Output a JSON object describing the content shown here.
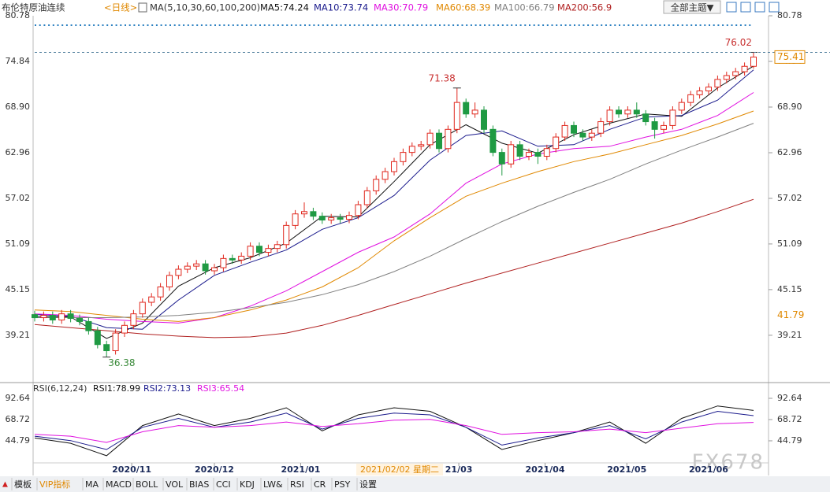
{
  "header": {
    "symbol": "布伦特原油连续",
    "period": "<日线>",
    "ma_label": "MA(5,10,30,60,100,200)",
    "theme_button": "全部主题▼"
  },
  "chart_data": [
    {
      "type": "candlestick",
      "ylim": [
        33.67,
        80.78
      ],
      "yticks": [
        80.78,
        74.84,
        {
          "value": 68.9,
          "label": "68.90"
        },
        62.96,
        57.02,
        51.09,
        45.15,
        39.21
      ],
      "up_color": "#e0281e",
      "down_color": "#1f9a43",
      "ohlc": [
        [
          41.9,
          42.4,
          41.0,
          41.5
        ],
        [
          41.5,
          42.3,
          41.0,
          41.8
        ],
        [
          41.8,
          42.3,
          40.7,
          41.2
        ],
        [
          41.2,
          42.5,
          40.7,
          42.0
        ],
        [
          42.0,
          42.5,
          40.9,
          41.4
        ],
        [
          41.4,
          41.9,
          40.5,
          41.0
        ],
        [
          41.0,
          41.5,
          39.3,
          39.8
        ],
        [
          39.8,
          40.3,
          37.5,
          38.0
        ],
        [
          38.0,
          38.5,
          36.38,
          37.2
        ],
        [
          37.2,
          40.0,
          36.7,
          39.5
        ],
        [
          39.5,
          41.0,
          39.0,
          40.5
        ],
        [
          40.5,
          42.5,
          40.0,
          42.0
        ],
        [
          42.0,
          44.0,
          41.5,
          43.5
        ],
        [
          43.5,
          44.7,
          43.0,
          44.2
        ],
        [
          44.2,
          46.0,
          43.7,
          45.5
        ],
        [
          45.5,
          47.5,
          45.0,
          47.0
        ],
        [
          47.0,
          48.3,
          46.5,
          47.8
        ],
        [
          47.8,
          48.7,
          47.3,
          48.2
        ],
        [
          48.2,
          49.0,
          47.7,
          48.5
        ],
        [
          48.5,
          49.0,
          47.1,
          47.6
        ],
        [
          47.6,
          48.5,
          47.1,
          48.0
        ],
        [
          48.0,
          49.7,
          47.5,
          49.2
        ],
        [
          49.2,
          49.7,
          48.5,
          49.0
        ],
        [
          49.0,
          50.0,
          48.5,
          49.5
        ],
        [
          49.5,
          51.3,
          49.0,
          50.8
        ],
        [
          50.8,
          51.3,
          49.5,
          50.0
        ],
        [
          50.0,
          51.0,
          49.5,
          50.5
        ],
        [
          50.5,
          51.5,
          50.0,
          51.0
        ],
        [
          51.0,
          54.0,
          50.5,
          53.5
        ],
        [
          53.5,
          55.5,
          53.0,
          55.0
        ],
        [
          55.0,
          56.5,
          54.5,
          55.3
        ],
        [
          55.3,
          55.8,
          54.2,
          54.7
        ],
        [
          54.7,
          55.2,
          53.7,
          54.2
        ],
        [
          54.2,
          55.0,
          53.7,
          54.5
        ],
        [
          54.5,
          55.0,
          53.8,
          54.3
        ],
        [
          54.3,
          55.3,
          53.8,
          54.8
        ],
        [
          54.8,
          56.7,
          54.3,
          56.2
        ],
        [
          56.2,
          58.5,
          55.7,
          58.0
        ],
        [
          58.0,
          60.0,
          57.5,
          59.5
        ],
        [
          59.5,
          61.0,
          59.0,
          60.5
        ],
        [
          60.5,
          62.3,
          60.0,
          61.8
        ],
        [
          61.8,
          63.5,
          61.3,
          63.0
        ],
        [
          63.0,
          64.3,
          62.5,
          63.8
        ],
        [
          63.8,
          64.5,
          63.3,
          64.0
        ],
        [
          64.0,
          66.0,
          63.5,
          65.5
        ],
        [
          65.5,
          66.0,
          63.0,
          63.5
        ],
        [
          63.5,
          66.5,
          63.0,
          66.0
        ],
        [
          66.0,
          71.38,
          65.5,
          69.5
        ],
        [
          69.5,
          70.0,
          67.5,
          68.0
        ],
        [
          68.0,
          69.5,
          67.5,
          68.5
        ],
        [
          68.5,
          69.0,
          65.5,
          66.0
        ],
        [
          66.0,
          66.5,
          62.5,
          63.0
        ],
        [
          63.0,
          63.5,
          60.0,
          61.5
        ],
        [
          61.5,
          64.5,
          61.0,
          64.0
        ],
        [
          64.0,
          64.5,
          62.0,
          62.5
        ],
        [
          62.5,
          63.5,
          62.0,
          63.0
        ],
        [
          63.0,
          63.5,
          61.5,
          62.5
        ],
        [
          62.5,
          64.0,
          62.0,
          63.5
        ],
        [
          63.5,
          65.5,
          63.0,
          65.0
        ],
        [
          65.0,
          67.0,
          64.5,
          66.5
        ],
        [
          66.5,
          67.0,
          65.0,
          65.5
        ],
        [
          65.5,
          66.0,
          64.5,
          65.0
        ],
        [
          65.0,
          66.0,
          64.5,
          65.5
        ],
        [
          65.5,
          67.5,
          65.0,
          67.0
        ],
        [
          67.0,
          69.0,
          66.5,
          68.5
        ],
        [
          68.5,
          69.0,
          67.5,
          68.0
        ],
        [
          68.0,
          69.0,
          67.5,
          68.5
        ],
        [
          68.5,
          69.5,
          67.5,
          68.0
        ],
        [
          68.0,
          68.5,
          66.5,
          67.0
        ],
        [
          67.0,
          67.5,
          64.8,
          66.0
        ],
        [
          66.0,
          67.0,
          65.5,
          66.5
        ],
        [
          66.5,
          69.0,
          66.0,
          68.5
        ],
        [
          68.5,
          70.0,
          68.0,
          69.5
        ],
        [
          69.5,
          71.0,
          69.0,
          70.5
        ],
        [
          70.5,
          71.5,
          70.0,
          71.0
        ],
        [
          71.0,
          72.0,
          70.5,
          71.5
        ],
        [
          71.5,
          73.0,
          71.0,
          72.5
        ],
        [
          72.5,
          73.5,
          72.0,
          73.0
        ],
        [
          73.0,
          74.0,
          72.5,
          73.5
        ],
        [
          73.5,
          74.7,
          73.0,
          74.2
        ],
        [
          74.2,
          76.02,
          73.9,
          75.41
        ]
      ],
      "series_x": [
        0,
        4,
        8,
        12,
        16,
        20,
        24,
        28,
        32,
        36,
        40,
        44,
        48,
        52,
        56,
        60,
        64,
        68,
        72,
        76,
        80
      ],
      "series": [
        {
          "name": "MA5:74.24",
          "color": "#111111",
          "values": [
            41.6,
            41.6,
            38.8,
            40.8,
            45.6,
            48.0,
            49.3,
            51.2,
            54.7,
            54.6,
            59.2,
            64.0,
            66.6,
            64.2,
            62.9,
            65.3,
            66.8,
            68.0,
            67.7,
            71.4,
            74.24
          ]
        },
        {
          "name": "MA10:73.74",
          "color": "#1a1a8c",
          "values": [
            41.9,
            41.7,
            40.2,
            40.0,
            43.8,
            47.0,
            48.7,
            50.3,
            53.0,
            54.5,
            57.4,
            62.0,
            65.2,
            65.8,
            63.8,
            64.0,
            66.0,
            67.6,
            67.8,
            69.8,
            73.74
          ]
        },
        {
          "name": "MA30:70.79",
          "color": "#e010e0",
          "values": [
            42.0,
            41.8,
            41.3,
            41.0,
            40.8,
            41.5,
            43.0,
            45.0,
            47.5,
            50.0,
            52.0,
            55.0,
            59.0,
            61.5,
            62.8,
            63.5,
            63.8,
            65.0,
            66.0,
            67.8,
            70.79
          ]
        },
        {
          "name": "MA60:68.39",
          "color": "#e08800",
          "values": [
            42.5,
            42.3,
            41.8,
            41.3,
            41.0,
            41.5,
            42.5,
            43.8,
            45.5,
            48.0,
            51.5,
            54.5,
            57.3,
            59.0,
            60.5,
            61.8,
            62.8,
            64.0,
            65.2,
            66.7,
            68.39
          ]
        },
        {
          "name": "MA100:66.79",
          "color": "#808080",
          "values": [
            41.5,
            41.5,
            41.5,
            41.6,
            41.8,
            42.2,
            42.8,
            43.5,
            44.5,
            45.8,
            47.5,
            49.5,
            51.8,
            54.0,
            56.0,
            57.8,
            59.5,
            61.5,
            63.3,
            65.0,
            66.79
          ]
        },
        {
          "name": "MA200:56.9",
          "color": "#b02020",
          "values": [
            40.6,
            40.2,
            39.8,
            39.4,
            39.1,
            38.9,
            39.0,
            39.5,
            40.5,
            41.8,
            43.2,
            44.6,
            46.0,
            47.3,
            48.6,
            49.9,
            51.2,
            52.5,
            53.8,
            55.3,
            56.9
          ]
        }
      ],
      "annotations": [
        {
          "index": 80,
          "value": 76.02,
          "color": "#c83030"
        },
        {
          "index": 47,
          "value": 71.38,
          "color": "#c83030"
        },
        {
          "index": 8,
          "value": 36.38,
          "color": "#3a8a3a"
        }
      ],
      "last_price": 75.41,
      "marker_price": 41.79,
      "marker_color": "#e08800"
    },
    {
      "type": "line",
      "title": "RSI(6,12,24)",
      "ylim": [
        16.4,
        108.6
      ],
      "yticks": [
        92.64,
        68.72,
        44.79
      ],
      "xticks": [
        {
          "value": 10.8,
          "label": "2020/11"
        },
        {
          "value": 20,
          "label": "2020/12"
        },
        {
          "value": 29.6,
          "label": "2021/01"
        },
        {
          "value": 47.2,
          "label": "21/03"
        },
        {
          "value": 56.8,
          "label": "2021/04"
        },
        {
          "value": 65.9,
          "label": "2021/05"
        },
        {
          "value": 75,
          "label": "2021/06"
        }
      ],
      "x": [
        0,
        4,
        8,
        12,
        16,
        20,
        24,
        28,
        32,
        36,
        40,
        44,
        48,
        52,
        56,
        60,
        64,
        68,
        72,
        76,
        80
      ],
      "series": [
        {
          "name": "RSI1:78.99",
          "color": "#111111",
          "values": [
            48,
            42,
            28,
            62,
            75,
            62,
            70,
            82,
            56,
            74,
            82,
            78,
            60,
            35,
            45,
            54,
            66,
            42,
            70,
            84,
            78.99
          ]
        },
        {
          "name": "RSI2:73.13",
          "color": "#1a1a8c",
          "values": [
            50,
            45,
            35,
            60,
            70,
            60,
            66,
            76,
            58,
            70,
            76,
            74,
            60,
            40,
            48,
            54,
            62,
            47,
            66,
            78,
            73.13
          ]
        },
        {
          "name": "RSI3:65.54",
          "color": "#e010e0",
          "values": [
            52,
            50,
            43,
            55,
            62,
            60,
            62,
            66,
            61,
            64,
            68,
            69,
            62,
            52,
            54,
            55,
            58,
            54,
            59,
            64,
            65.54
          ]
        }
      ]
    }
  ],
  "crosshair_label": "2021/02/02 星期二",
  "toolbar": [
    "模板",
    "VIP指标",
    "MA",
    "MACD",
    "BOLL",
    "VOL",
    "BIAS",
    "CCI",
    "KDJ",
    "LW&",
    "RSI",
    "CR",
    "PSY",
    "设置"
  ],
  "watermark": "FX678"
}
